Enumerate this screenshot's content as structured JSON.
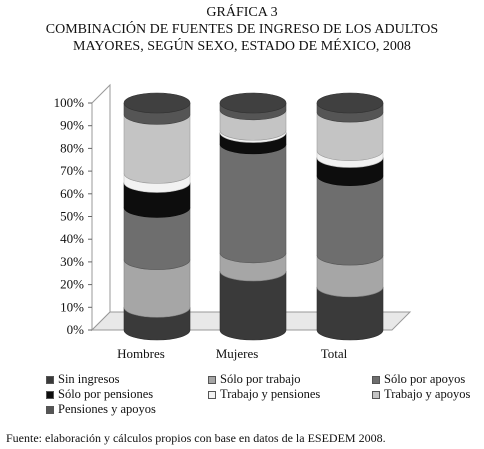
{
  "chart_data": {
    "type": "bar",
    "stacked": true,
    "title": [
      "GRÁFICA 3",
      "COMBINACIÓN DE FUENTES DE INGRESO DE LOS ADULTOS",
      "MAYORES, SEGÚN SEXO, ESTADO DE MÉXICO, 2008"
    ],
    "categories": [
      "Hombres",
      "Mujeres",
      "Total"
    ],
    "yticks": [
      "0%",
      "10%",
      "20%",
      "30%",
      "40%",
      "50%",
      "60%",
      "70%",
      "80%",
      "90%",
      "100%"
    ],
    "ylim": [
      0,
      100
    ],
    "series": [
      {
        "name": "Sin ingresos",
        "color": "#3a3a3a",
        "values": [
          10,
          26,
          19
        ]
      },
      {
        "name": "Sólo por trabajo",
        "color": "#a6a6a6",
        "values": [
          21,
          8,
          14
        ]
      },
      {
        "name": "Sólo por apoyos",
        "color": "#6e6e6e",
        "values": [
          23,
          48,
          35
        ]
      },
      {
        "name": "Sólo por pensiones",
        "color": "#0d0d0d",
        "values": [
          11,
          5,
          8
        ]
      },
      {
        "name": "Trabajo y pensiones",
        "color": "#f2f2f2",
        "values": [
          4,
          1,
          3
        ]
      },
      {
        "name": "Trabajo y apoyos",
        "color": "#c4c4c4",
        "values": [
          26,
          9,
          17
        ]
      },
      {
        "name": "Pensiones y apoyos",
        "color": "#555555",
        "values": [
          5,
          3,
          4
        ]
      }
    ],
    "legend_position": "bottom"
  },
  "source": "Fuente: elaboración y cálculos propios con base en datos de la ESEDEM 2008."
}
